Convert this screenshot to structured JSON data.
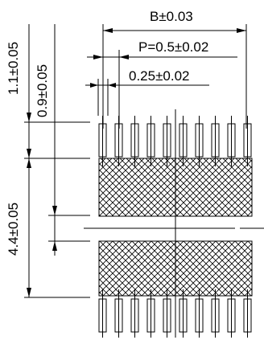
{
  "dimensions": {
    "b_width": "B±0.03",
    "pitch": "P=0.5±0.02",
    "pin_width": "0.25±0.02",
    "pin_length_outer": "1.1±0.05",
    "pin_length_inner": "0.9±0.05",
    "pad_span": "4.4±0.05"
  },
  "pin_count_per_row": 10,
  "colors": {
    "line": "#000000",
    "background": "#ffffff"
  }
}
